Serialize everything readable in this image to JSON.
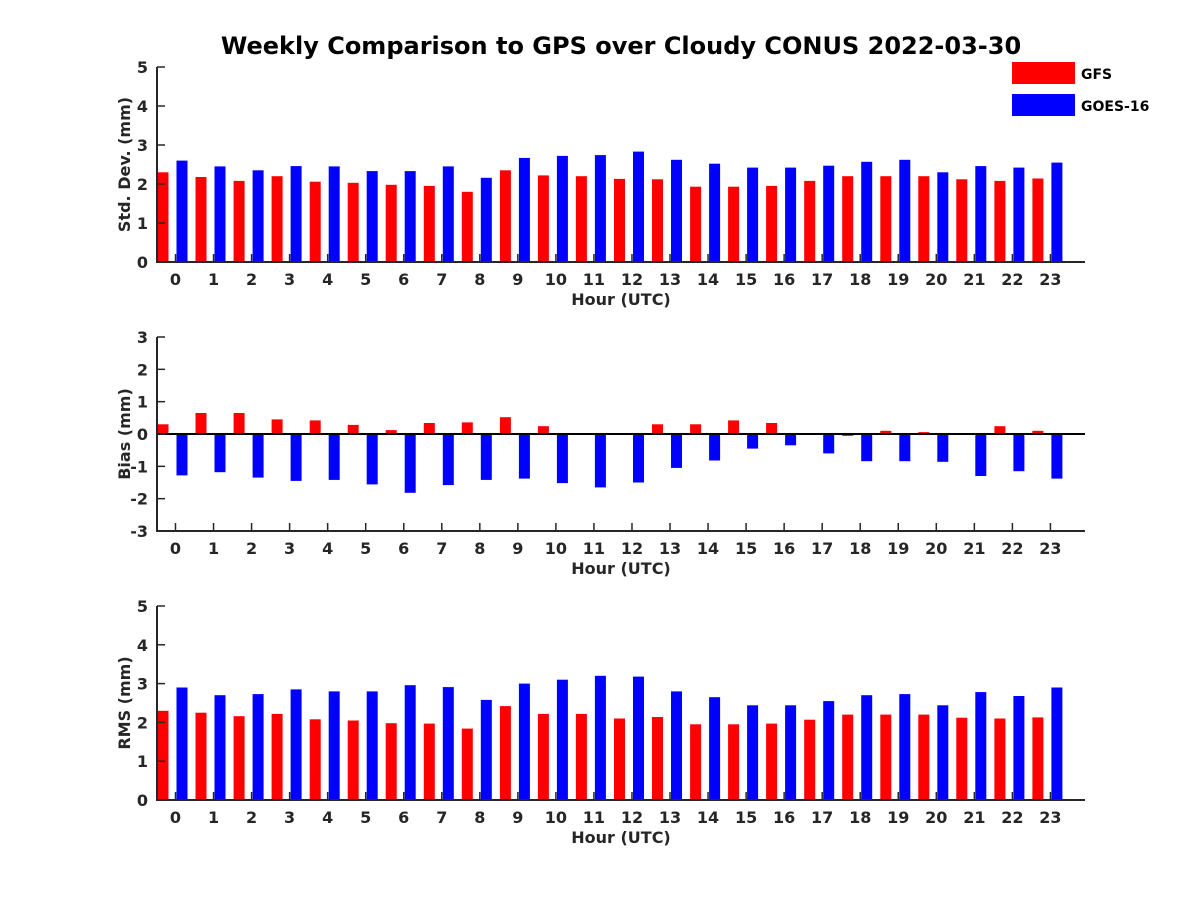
{
  "title": "Weekly Comparison to GPS over Cloudy CONUS 2022-03-30",
  "colors": {
    "GFS": "#ff0000",
    "GOES-16": "#0000ff",
    "axis": "#262626"
  },
  "legend": {
    "position": "top-right",
    "entries": [
      "GFS",
      "GOES-16"
    ]
  },
  "chart_data": [
    {
      "type": "bar",
      "ylabel": "Std. Dev. (mm)",
      "xlabel": "Hour (UTC)",
      "ylim": [
        0,
        5
      ],
      "yticks": [
        0,
        1,
        2,
        3,
        4,
        5
      ],
      "categories": [
        "0",
        "1",
        "2",
        "3",
        "4",
        "5",
        "6",
        "7",
        "8",
        "9",
        "10",
        "11",
        "12",
        "13",
        "14",
        "15",
        "16",
        "17",
        "18",
        "19",
        "20",
        "21",
        "22",
        "23"
      ],
      "series": [
        {
          "name": "GFS",
          "values": [
            2.3,
            2.18,
            2.08,
            2.2,
            2.06,
            2.03,
            1.98,
            1.95,
            1.8,
            2.35,
            2.22,
            2.2,
            2.13,
            2.12,
            1.93,
            1.93,
            1.95,
            2.08,
            2.2,
            2.2,
            2.2,
            2.12,
            2.08,
            2.14
          ]
        },
        {
          "name": "GOES-16",
          "values": [
            2.6,
            2.45,
            2.35,
            2.46,
            2.45,
            2.33,
            2.33,
            2.45,
            2.16,
            2.67,
            2.72,
            2.74,
            2.83,
            2.62,
            2.52,
            2.42,
            2.42,
            2.47,
            2.57,
            2.62,
            2.3,
            2.46,
            2.42,
            2.55
          ]
        }
      ]
    },
    {
      "type": "bar",
      "ylabel": "Bias (mm)",
      "xlabel": "Hour (UTC)",
      "ylim": [
        -3,
        3
      ],
      "yticks": [
        -3,
        -2,
        -1,
        0,
        1,
        2,
        3
      ],
      "categories": [
        "0",
        "1",
        "2",
        "3",
        "4",
        "5",
        "6",
        "7",
        "8",
        "9",
        "10",
        "11",
        "12",
        "13",
        "14",
        "15",
        "16",
        "17",
        "18",
        "19",
        "20",
        "21",
        "22",
        "23"
      ],
      "series": [
        {
          "name": "GFS",
          "values": [
            0.3,
            0.65,
            0.65,
            0.45,
            0.42,
            0.28,
            0.12,
            0.34,
            0.36,
            0.52,
            0.24,
            0.02,
            0.02,
            0.3,
            0.3,
            0.42,
            0.34,
            0.0,
            -0.06,
            0.1,
            0.06,
            0.0,
            0.24,
            0.1
          ]
        },
        {
          "name": "GOES-16",
          "values": [
            -1.28,
            -1.18,
            -1.35,
            -1.45,
            -1.42,
            -1.56,
            -1.82,
            -1.58,
            -1.42,
            -1.38,
            -1.52,
            -1.65,
            -1.5,
            -1.05,
            -0.82,
            -0.45,
            -0.35,
            -0.6,
            -0.84,
            -0.84,
            -0.86,
            -1.3,
            -1.15,
            -1.38
          ]
        }
      ]
    },
    {
      "type": "bar",
      "ylabel": "RMS (mm)",
      "xlabel": "Hour (UTC)",
      "ylim": [
        0,
        5
      ],
      "yticks": [
        0,
        1,
        2,
        3,
        4,
        5
      ],
      "categories": [
        "0",
        "1",
        "2",
        "3",
        "4",
        "5",
        "6",
        "7",
        "8",
        "9",
        "10",
        "11",
        "12",
        "13",
        "14",
        "15",
        "16",
        "17",
        "18",
        "19",
        "20",
        "21",
        "22",
        "23"
      ],
      "series": [
        {
          "name": "GFS",
          "values": [
            2.3,
            2.25,
            2.16,
            2.22,
            2.08,
            2.05,
            1.98,
            1.97,
            1.84,
            2.42,
            2.22,
            2.22,
            2.1,
            2.14,
            1.95,
            1.95,
            1.97,
            2.07,
            2.2,
            2.2,
            2.2,
            2.12,
            2.1,
            2.13
          ]
        },
        {
          "name": "GOES-16",
          "values": [
            2.9,
            2.7,
            2.73,
            2.85,
            2.8,
            2.8,
            2.96,
            2.91,
            2.58,
            3.0,
            3.1,
            3.2,
            3.18,
            2.8,
            2.65,
            2.44,
            2.44,
            2.55,
            2.7,
            2.73,
            2.44,
            2.78,
            2.68,
            2.9
          ]
        }
      ]
    }
  ]
}
